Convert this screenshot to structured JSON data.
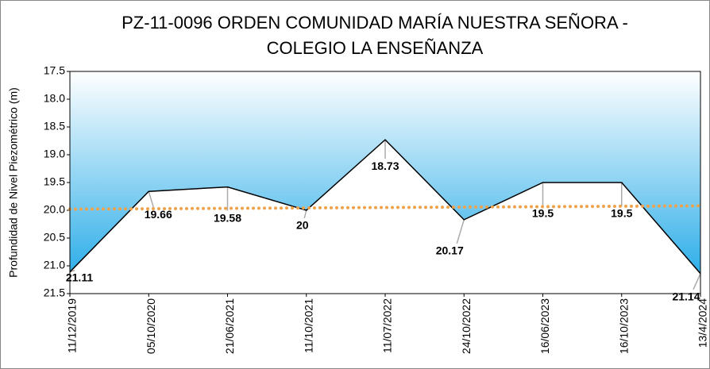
{
  "chart_data": {
    "type": "area",
    "title": [
      "PZ-11-0096 ORDEN COMUNIDAD MARÍA NUESTRA SEÑORA -",
      "COLEGIO LA ENSEÑANZA"
    ],
    "y_label": "Profundidad de Nivel Piezométrico (m)",
    "categories": [
      "11/12/2019",
      "05/10/2020",
      "21/06/2021",
      "11/10/2021",
      "11/07/2022",
      "24/10/2022",
      "16/06/2023",
      "16/10/2023",
      "13/4/2024"
    ],
    "values": [
      21.11,
      19.66,
      19.58,
      20,
      18.73,
      20.17,
      19.5,
      19.5,
      21.14
    ],
    "color": "#000000",
    "fill_gradient": [
      "#ffffff",
      "#1aa6e6"
    ],
    "ylim": [
      17.5,
      21.5
    ],
    "y_inverted": true,
    "yticks": [
      17.5,
      {
        "value": 18,
        "label": "18.0"
      },
      18.5,
      {
        "value": 19,
        "label": "19.0"
      },
      19.5,
      {
        "value": 20,
        "label": "20.0"
      },
      20.5,
      {
        "value": 21,
        "label": "21.0"
      },
      21.5
    ],
    "trendline": {
      "values": [
        19.98,
        19.92
      ],
      "color": "#f0a24a"
    }
  }
}
